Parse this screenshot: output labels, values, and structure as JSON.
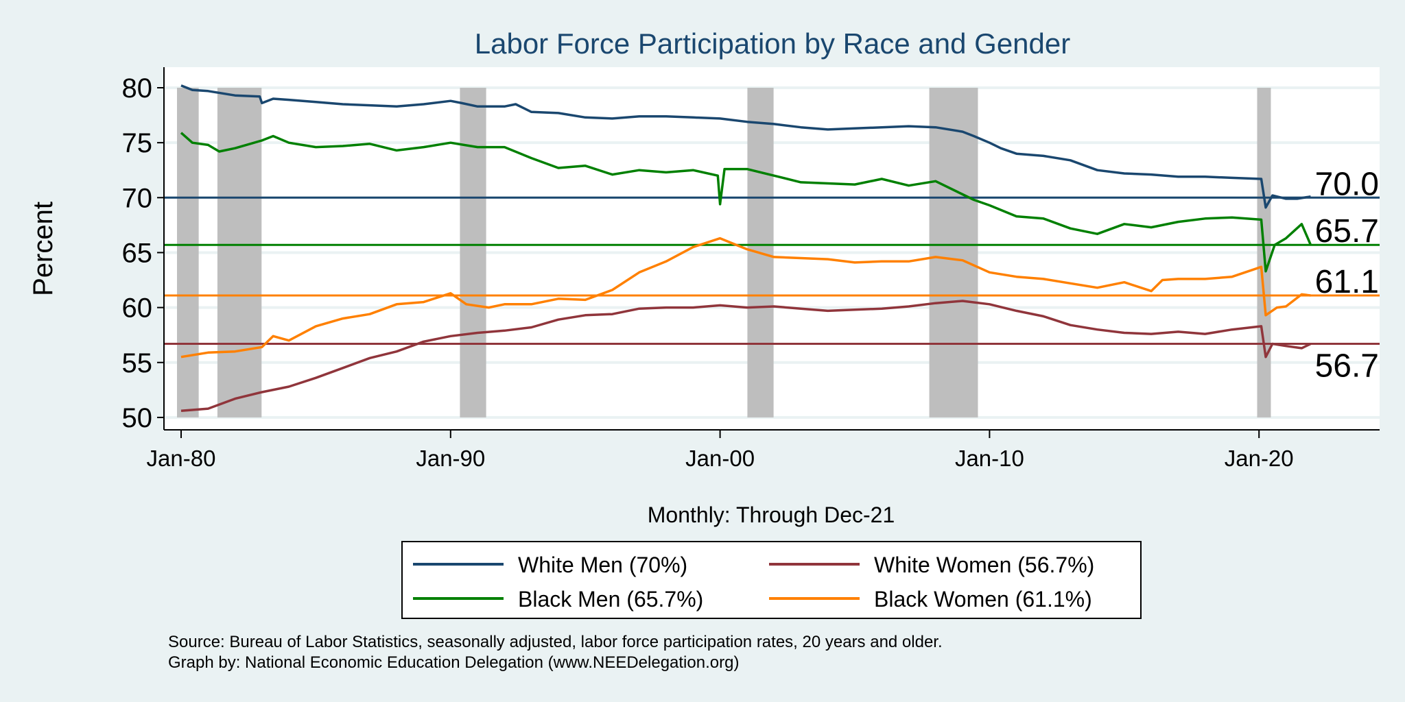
{
  "chart_data": {
    "type": "line",
    "title": "Labor Force Participation by Race and Gender",
    "ylabel": "Percent",
    "xlabel": "Monthly: Through Dec-21",
    "ylim": [
      50,
      80
    ],
    "yticks": [
      50,
      55,
      60,
      65,
      70,
      75,
      80
    ],
    "xlim": [
      "1980-01",
      "2024-06"
    ],
    "xticks": [
      {
        "date": "1980-01",
        "label": "Jan-80"
      },
      {
        "date": "1990-01",
        "label": "Jan-90"
      },
      {
        "date": "2000-01",
        "label": "Jan-00"
      },
      {
        "date": "2010-01",
        "label": "Jan-10"
      },
      {
        "date": "2020-01",
        "label": "Jan-20"
      }
    ],
    "grid": true,
    "legend_position": "bottom",
    "recessions": [
      [
        "1980-01",
        "1980-07"
      ],
      [
        "1981-07",
        "1982-11"
      ],
      [
        "1990-07",
        "1991-03"
      ],
      [
        "2001-03",
        "2001-11"
      ],
      [
        "2007-12",
        "2009-06"
      ],
      [
        "2020-02",
        "2020-04"
      ]
    ],
    "recession_color": "#bebebe",
    "series": [
      {
        "name": "White Men (70%)",
        "color": "#1a476f",
        "reference": {
          "value": 70.0,
          "label": "70.0"
        },
        "points": [
          [
            "1980-01",
            80.2
          ],
          [
            "1980-06",
            79.8
          ],
          [
            "1981-01",
            79.7
          ],
          [
            "1982-01",
            79.3
          ],
          [
            "1982-12",
            79.2
          ],
          [
            "1983-01",
            78.6
          ],
          [
            "1983-06",
            79.0
          ],
          [
            "1984-01",
            78.9
          ],
          [
            "1985-01",
            78.7
          ],
          [
            "1986-01",
            78.5
          ],
          [
            "1987-01",
            78.4
          ],
          [
            "1988-01",
            78.3
          ],
          [
            "1989-01",
            78.5
          ],
          [
            "1990-01",
            78.8
          ],
          [
            "1990-06",
            78.6
          ],
          [
            "1991-01",
            78.3
          ],
          [
            "1992-01",
            78.3
          ],
          [
            "1992-06",
            78.5
          ],
          [
            "1993-01",
            77.8
          ],
          [
            "1994-01",
            77.7
          ],
          [
            "1995-01",
            77.3
          ],
          [
            "1996-01",
            77.2
          ],
          [
            "1997-01",
            77.4
          ],
          [
            "1998-01",
            77.4
          ],
          [
            "1999-01",
            77.3
          ],
          [
            "2000-01",
            77.2
          ],
          [
            "2001-01",
            76.9
          ],
          [
            "2002-01",
            76.7
          ],
          [
            "2003-01",
            76.4
          ],
          [
            "2004-01",
            76.2
          ],
          [
            "2005-01",
            76.3
          ],
          [
            "2006-01",
            76.4
          ],
          [
            "2007-01",
            76.5
          ],
          [
            "2008-01",
            76.4
          ],
          [
            "2009-01",
            76.0
          ],
          [
            "2009-06",
            75.6
          ],
          [
            "2010-01",
            75.0
          ],
          [
            "2010-06",
            74.5
          ],
          [
            "2011-01",
            74.0
          ],
          [
            "2012-01",
            73.8
          ],
          [
            "2013-01",
            73.4
          ],
          [
            "2014-01",
            72.5
          ],
          [
            "2015-01",
            72.2
          ],
          [
            "2016-01",
            72.1
          ],
          [
            "2017-01",
            71.9
          ],
          [
            "2018-01",
            71.9
          ],
          [
            "2019-01",
            71.8
          ],
          [
            "2020-02",
            71.7
          ],
          [
            "2020-04",
            69.1
          ],
          [
            "2020-07",
            70.2
          ],
          [
            "2021-01",
            69.9
          ],
          [
            "2021-06",
            69.9
          ],
          [
            "2021-12",
            70.1
          ]
        ]
      },
      {
        "name": "Black Men (65.7%)",
        "color": "#008000",
        "reference": {
          "value": 65.7,
          "label": "65.7"
        },
        "points": [
          [
            "1980-01",
            75.9
          ],
          [
            "1980-06",
            75.0
          ],
          [
            "1981-01",
            74.8
          ],
          [
            "1981-06",
            74.2
          ],
          [
            "1982-01",
            74.5
          ],
          [
            "1983-01",
            75.2
          ],
          [
            "1983-06",
            75.6
          ],
          [
            "1984-01",
            75.0
          ],
          [
            "1985-01",
            74.6
          ],
          [
            "1986-01",
            74.7
          ],
          [
            "1987-01",
            74.9
          ],
          [
            "1988-01",
            74.3
          ],
          [
            "1989-01",
            74.6
          ],
          [
            "1990-01",
            75.0
          ],
          [
            "1991-01",
            74.6
          ],
          [
            "1992-01",
            74.6
          ],
          [
            "1993-01",
            73.6
          ],
          [
            "1994-01",
            72.7
          ],
          [
            "1995-01",
            72.9
          ],
          [
            "1996-01",
            72.1
          ],
          [
            "1997-01",
            72.5
          ],
          [
            "1998-01",
            72.3
          ],
          [
            "1999-01",
            72.5
          ],
          [
            "1999-12",
            72.0
          ],
          [
            "2000-01",
            69.4
          ],
          [
            "2000-03",
            72.6
          ],
          [
            "2001-01",
            72.6
          ],
          [
            "2002-01",
            72.0
          ],
          [
            "2003-01",
            71.4
          ],
          [
            "2004-01",
            71.3
          ],
          [
            "2005-01",
            71.2
          ],
          [
            "2006-01",
            71.7
          ],
          [
            "2007-01",
            71.1
          ],
          [
            "2008-01",
            71.5
          ],
          [
            "2009-01",
            70.3
          ],
          [
            "2009-06",
            69.8
          ],
          [
            "2010-01",
            69.3
          ],
          [
            "2011-01",
            68.3
          ],
          [
            "2012-01",
            68.1
          ],
          [
            "2013-01",
            67.2
          ],
          [
            "2014-01",
            66.7
          ],
          [
            "2015-01",
            67.6
          ],
          [
            "2016-01",
            67.3
          ],
          [
            "2017-01",
            67.8
          ],
          [
            "2018-01",
            68.1
          ],
          [
            "2019-01",
            68.2
          ],
          [
            "2020-02",
            68.0
          ],
          [
            "2020-04",
            63.3
          ],
          [
            "2020-08",
            65.7
          ],
          [
            "2021-01",
            66.3
          ],
          [
            "2021-08",
            67.6
          ],
          [
            "2021-12",
            65.7
          ]
        ]
      },
      {
        "name": "Black Women (61.1%)",
        "color": "#ff8000",
        "reference": {
          "value": 61.1,
          "label": "61.1"
        },
        "points": [
          [
            "1980-01",
            55.5
          ],
          [
            "1981-01",
            55.9
          ],
          [
            "1982-01",
            56.0
          ],
          [
            "1983-01",
            56.4
          ],
          [
            "1983-06",
            57.4
          ],
          [
            "1984-01",
            57.0
          ],
          [
            "1985-01",
            58.3
          ],
          [
            "1986-01",
            59.0
          ],
          [
            "1987-01",
            59.4
          ],
          [
            "1988-01",
            60.3
          ],
          [
            "1989-01",
            60.5
          ],
          [
            "1990-01",
            61.3
          ],
          [
            "1990-08",
            60.3
          ],
          [
            "1991-06",
            60.0
          ],
          [
            "1992-01",
            60.3
          ],
          [
            "1993-01",
            60.3
          ],
          [
            "1994-01",
            60.8
          ],
          [
            "1995-01",
            60.7
          ],
          [
            "1996-01",
            61.6
          ],
          [
            "1997-01",
            63.2
          ],
          [
            "1998-01",
            64.2
          ],
          [
            "1999-01",
            65.5
          ],
          [
            "2000-01",
            66.3
          ],
          [
            "2001-01",
            65.3
          ],
          [
            "2002-01",
            64.6
          ],
          [
            "2003-01",
            64.5
          ],
          [
            "2004-01",
            64.4
          ],
          [
            "2005-01",
            64.1
          ],
          [
            "2006-01",
            64.2
          ],
          [
            "2007-01",
            64.2
          ],
          [
            "2008-01",
            64.6
          ],
          [
            "2009-01",
            64.3
          ],
          [
            "2010-01",
            63.2
          ],
          [
            "2011-01",
            62.8
          ],
          [
            "2012-01",
            62.6
          ],
          [
            "2013-01",
            62.2
          ],
          [
            "2014-01",
            61.8
          ],
          [
            "2015-01",
            62.3
          ],
          [
            "2016-01",
            61.5
          ],
          [
            "2016-06",
            62.5
          ],
          [
            "2017-01",
            62.6
          ],
          [
            "2018-01",
            62.6
          ],
          [
            "2019-01",
            62.8
          ],
          [
            "2020-02",
            63.7
          ],
          [
            "2020-04",
            59.3
          ],
          [
            "2020-09",
            60.0
          ],
          [
            "2021-01",
            60.1
          ],
          [
            "2021-08",
            61.2
          ],
          [
            "2021-12",
            61.1
          ]
        ]
      },
      {
        "name": "White Women (56.7%)",
        "color": "#90353b",
        "reference": {
          "value": 56.7,
          "label": "56.7"
        },
        "points": [
          [
            "1980-01",
            50.6
          ],
          [
            "1981-01",
            50.8
          ],
          [
            "1982-01",
            51.7
          ],
          [
            "1983-01",
            52.3
          ],
          [
            "1984-01",
            52.8
          ],
          [
            "1985-01",
            53.6
          ],
          [
            "1986-01",
            54.5
          ],
          [
            "1987-01",
            55.4
          ],
          [
            "1988-01",
            56.0
          ],
          [
            "1989-01",
            56.9
          ],
          [
            "1990-01",
            57.4
          ],
          [
            "1991-01",
            57.7
          ],
          [
            "1992-01",
            57.9
          ],
          [
            "1993-01",
            58.2
          ],
          [
            "1994-01",
            58.9
          ],
          [
            "1995-01",
            59.3
          ],
          [
            "1996-01",
            59.4
          ],
          [
            "1997-01",
            59.9
          ],
          [
            "1998-01",
            60.0
          ],
          [
            "1999-01",
            60.0
          ],
          [
            "2000-01",
            60.2
          ],
          [
            "2001-01",
            60.0
          ],
          [
            "2002-01",
            60.1
          ],
          [
            "2003-01",
            59.9
          ],
          [
            "2004-01",
            59.7
          ],
          [
            "2005-01",
            59.8
          ],
          [
            "2006-01",
            59.9
          ],
          [
            "2007-01",
            60.1
          ],
          [
            "2008-01",
            60.4
          ],
          [
            "2009-01",
            60.6
          ],
          [
            "2010-01",
            60.3
          ],
          [
            "2011-01",
            59.7
          ],
          [
            "2012-01",
            59.2
          ],
          [
            "2013-01",
            58.4
          ],
          [
            "2014-01",
            58.0
          ],
          [
            "2015-01",
            57.7
          ],
          [
            "2016-01",
            57.6
          ],
          [
            "2017-01",
            57.8
          ],
          [
            "2018-01",
            57.6
          ],
          [
            "2019-01",
            58.0
          ],
          [
            "2020-02",
            58.3
          ],
          [
            "2020-04",
            55.5
          ],
          [
            "2020-07",
            56.7
          ],
          [
            "2021-01",
            56.5
          ],
          [
            "2021-08",
            56.3
          ],
          [
            "2021-12",
            56.7
          ]
        ]
      }
    ],
    "legend": [
      {
        "label": "White Men (70%)",
        "color": "#1a476f"
      },
      {
        "label": "White Women (56.7%)",
        "color": "#90353b"
      },
      {
        "label": "Black Men (65.7%)",
        "color": "#008000"
      },
      {
        "label": "Black Women (61.1%)",
        "color": "#ff8000"
      }
    ],
    "notes": [
      "Source: Bureau of Labor Statistics, seasonally adjusted, labor force participation rates, 20 years and older.",
      "Graph by: National Economic Education Delegation (www.NEEDelegation.org)"
    ]
  }
}
